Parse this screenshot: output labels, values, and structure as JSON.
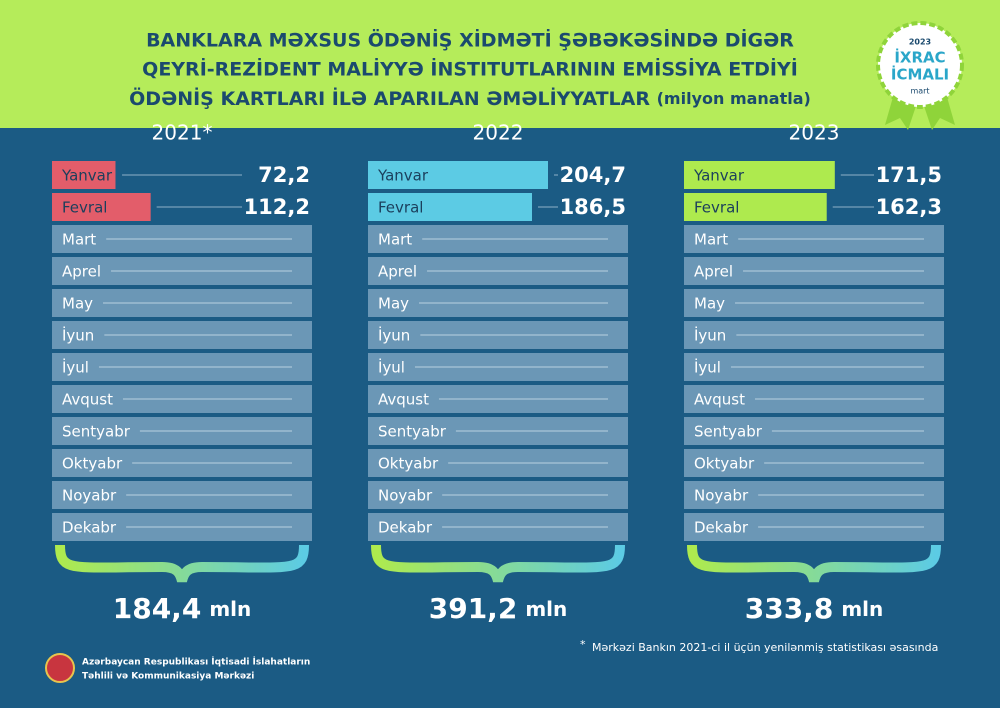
{
  "header": {
    "title_lines": [
      "BANKLARA MƏXSUS ÖDƏNİŞ XİDMƏTİ ŞƏBƏKƏSİNDƏ DİGƏR",
      "QEYRİ-REZİDENT MALİYYƏ İNSTITUTLARININ EMİSSİYA ETDİYİ",
      "ÖDƏNİŞ KARTLARI İLƏ APARILAN ƏMƏLİYYATLAR"
    ],
    "subtitle": "(milyon manatla)",
    "badge": {
      "year": "2023",
      "line1": "İXRAC",
      "line2": "İCMALI",
      "month": "mart"
    }
  },
  "chart_data": [
    {
      "type": "bar",
      "title": "2021*",
      "color": "#e35d6a",
      "categories": [
        "Yanvar",
        "Fevral",
        "Mart",
        "Aprel",
        "May",
        "İyun",
        "İyul",
        "Avqust",
        "Sentyabr",
        "Oktyabr",
        "Noyabr",
        "Dekabr"
      ],
      "values": [
        72.2,
        112.2,
        null,
        null,
        null,
        null,
        null,
        null,
        null,
        null,
        null,
        null
      ],
      "value_labels": [
        "72,2",
        "112,2",
        null,
        null,
        null,
        null,
        null,
        null,
        null,
        null,
        null,
        null
      ],
      "total": 184.4,
      "total_label": "184,4",
      "total_unit": "mln"
    },
    {
      "type": "bar",
      "title": "2022",
      "color": "#5ccbe4",
      "categories": [
        "Yanvar",
        "Fevral",
        "Mart",
        "Aprel",
        "May",
        "İyun",
        "İyul",
        "Avqust",
        "Sentyabr",
        "Oktyabr",
        "Noyabr",
        "Dekabr"
      ],
      "values": [
        204.7,
        186.5,
        null,
        null,
        null,
        null,
        null,
        null,
        null,
        null,
        null,
        null
      ],
      "value_labels": [
        "204,7",
        "186,5",
        null,
        null,
        null,
        null,
        null,
        null,
        null,
        null,
        null,
        null
      ],
      "total": 391.2,
      "total_label": "391,2",
      "total_unit": "mln"
    },
    {
      "type": "bar",
      "title": "2023",
      "color": "#aeea4e",
      "categories": [
        "Yanvar",
        "Fevral",
        "Mart",
        "Aprel",
        "May",
        "İyun",
        "İyul",
        "Avqust",
        "Sentyabr",
        "Oktyabr",
        "Noyabr",
        "Dekabr"
      ],
      "values": [
        171.5,
        162.3,
        null,
        null,
        null,
        null,
        null,
        null,
        null,
        null,
        null,
        null
      ],
      "value_labels": [
        "171,5",
        "162,3",
        null,
        null,
        null,
        null,
        null,
        null,
        null,
        null,
        null,
        null
      ],
      "total": 333.8,
      "total_label": "333,8",
      "total_unit": "mln"
    }
  ],
  "footnote": {
    "mark": "*",
    "text": "Mərkəzi Bankın 2021-ci il üçün yenilənmiş statistikası əsasında"
  },
  "logo": {
    "line1": "Azərbaycan Respublikası İqtisadi İslahatların",
    "line2": "Təhlili və Kommunikasiya Mərkəzi"
  }
}
